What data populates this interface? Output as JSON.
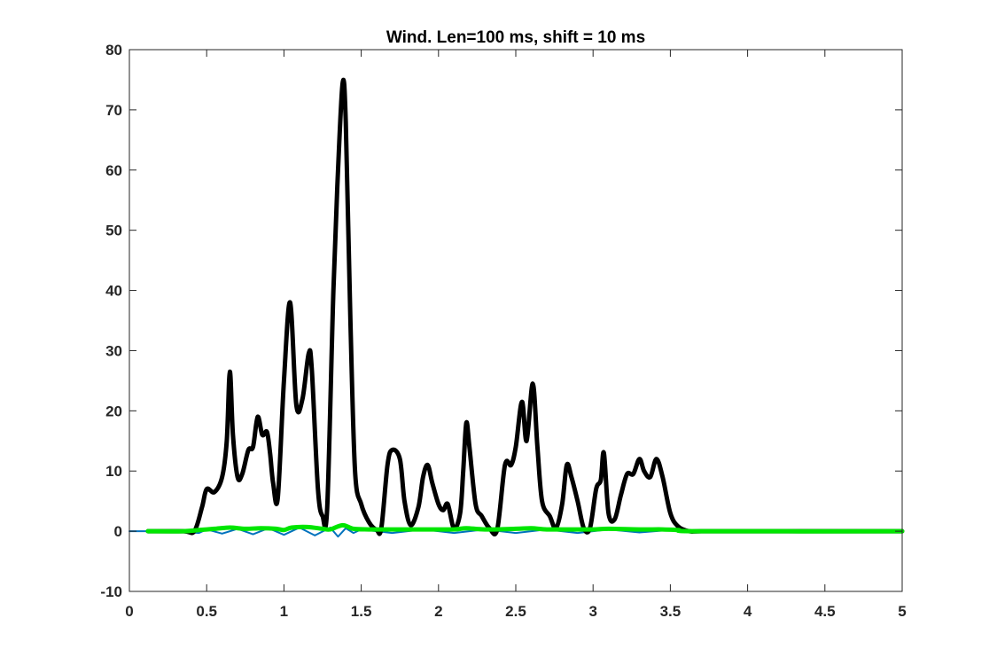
{
  "chart_data": {
    "type": "line",
    "title": "Wind. Len=100 ms, shift = 10 ms",
    "xlabel": "",
    "ylabel": "",
    "xlim": [
      0,
      5
    ],
    "ylim": [
      -10,
      80
    ],
    "grid": false,
    "x_ticks": [
      0,
      0.5,
      1,
      1.5,
      2,
      2.5,
      3,
      3.5,
      4,
      4.5,
      5
    ],
    "x_tick_labels": [
      "0",
      "0.5",
      "1",
      "1.5",
      "2",
      "2.5",
      "3",
      "3.5",
      "4",
      "4.5",
      "5"
    ],
    "y_ticks": [
      -10,
      0,
      10,
      20,
      30,
      40,
      50,
      60,
      70,
      80
    ],
    "y_tick_labels": [
      "-10",
      "0",
      "10",
      "20",
      "30",
      "40",
      "50",
      "60",
      "70",
      "80"
    ],
    "series": [
      {
        "color": "#0072bd",
        "style": "signal",
        "x": [
          0.0,
          0.3,
          0.45,
          0.5,
          0.6,
          0.7,
          0.8,
          0.9,
          1.0,
          1.1,
          1.2,
          1.3,
          1.35,
          1.4,
          1.45,
          1.5,
          1.7,
          1.9,
          2.1,
          2.3,
          2.5,
          2.7,
          2.9,
          3.1,
          3.3,
          3.5,
          3.6,
          5.0
        ],
        "y": [
          0,
          0,
          -0.3,
          0.3,
          -0.4,
          0.4,
          -0.5,
          0.5,
          -0.6,
          0.6,
          -0.7,
          0.6,
          -0.9,
          0.5,
          -0.3,
          0.3,
          -0.3,
          0.3,
          -0.3,
          0.3,
          -0.3,
          0.3,
          -0.3,
          0.3,
          -0.2,
          0.2,
          0,
          0
        ]
      },
      {
        "color": "#000000",
        "style": "envelope",
        "x": [
          0.12,
          0.35,
          0.42,
          0.47,
          0.5,
          0.55,
          0.6,
          0.63,
          0.65,
          0.67,
          0.7,
          0.73,
          0.77,
          0.8,
          0.83,
          0.86,
          0.89,
          0.91,
          0.93,
          0.96,
          1.0,
          1.04,
          1.08,
          1.12,
          1.16,
          1.18,
          1.22,
          1.25,
          1.28,
          1.32,
          1.35,
          1.38,
          1.4,
          1.43,
          1.46,
          1.5,
          1.55,
          1.6,
          1.63,
          1.67,
          1.7,
          1.75,
          1.78,
          1.82,
          1.87,
          1.9,
          1.93,
          1.96,
          2.0,
          2.03,
          2.06,
          2.1,
          2.14,
          2.16,
          2.18,
          2.2,
          2.24,
          2.28,
          2.33,
          2.38,
          2.43,
          2.47,
          2.5,
          2.54,
          2.57,
          2.61,
          2.64,
          2.67,
          2.72,
          2.76,
          2.8,
          2.83,
          2.86,
          2.9,
          2.94,
          2.98,
          3.02,
          3.05,
          3.07,
          3.1,
          3.14,
          3.18,
          3.22,
          3.26,
          3.3,
          3.33,
          3.37,
          3.41,
          3.45,
          3.5,
          3.55,
          3.62,
          3.7,
          4.0,
          5.0
        ],
        "y": [
          0,
          0,
          0,
          4,
          7,
          6.5,
          9,
          15,
          26.5,
          16,
          9,
          9.5,
          13.5,
          14,
          19,
          16,
          16.5,
          13,
          8,
          5.5,
          25,
          38,
          21,
          22,
          29.5,
          27,
          7,
          2.5,
          4,
          40,
          60,
          74.5,
          68,
          35,
          10,
          4.5,
          1.5,
          0.2,
          0.5,
          11,
          13.5,
          12,
          5,
          1,
          4,
          9,
          11,
          8,
          4.5,
          3.5,
          4.5,
          0.5,
          3,
          10,
          18,
          14,
          4.5,
          2.5,
          0.5,
          0.3,
          11,
          11,
          14,
          21.5,
          15,
          24.5,
          14,
          5,
          2.5,
          0.5,
          4.5,
          11,
          9,
          5,
          0.5,
          0.5,
          7,
          8.5,
          13,
          3,
          2,
          6,
          9.5,
          9.5,
          12,
          10,
          9,
          12,
          9,
          3,
          0.8,
          0,
          0,
          0,
          0
        ]
      },
      {
        "color": "#00e600",
        "style": "envelope",
        "x": [
          0.12,
          0.35,
          0.45,
          0.55,
          0.65,
          0.75,
          0.85,
          0.95,
          1.0,
          1.05,
          1.15,
          1.25,
          1.3,
          1.38,
          1.45,
          1.55,
          1.7,
          1.9,
          2.1,
          2.18,
          2.3,
          2.5,
          2.6,
          2.7,
          2.85,
          3.0,
          3.1,
          3.3,
          3.45,
          3.55,
          3.7,
          5.0
        ],
        "y": [
          0,
          0,
          0.2,
          0.4,
          0.6,
          0.4,
          0.5,
          0.4,
          0.2,
          0.6,
          0.7,
          0.4,
          0.3,
          1.0,
          0.4,
          0.3,
          0.3,
          0.3,
          0.3,
          0.5,
          0.3,
          0.4,
          0.5,
          0.3,
          0.3,
          0.3,
          0.4,
          0.3,
          0.3,
          0.2,
          0,
          0
        ]
      }
    ]
  }
}
